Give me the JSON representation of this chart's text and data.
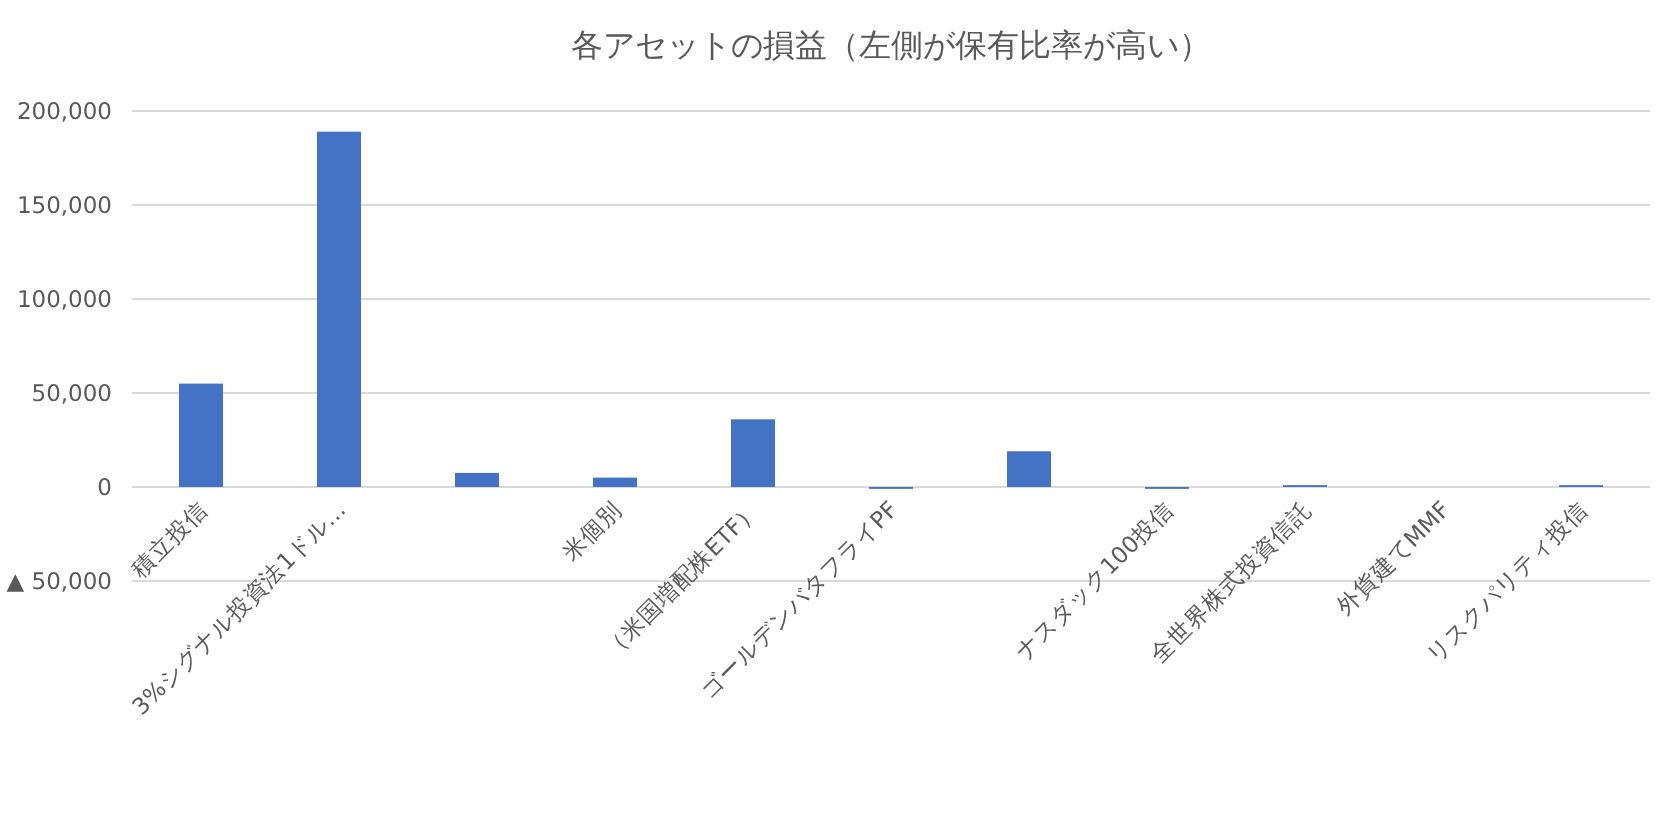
{
  "chart_data": {
    "type": "bar",
    "title": "各アセットの損益（左側が保有比率が高い）",
    "categories": [
      "積立投信",
      "3%シグナル投資法1ドル…",
      null,
      "米個別",
      "（米国増配株ETF）",
      "ゴールデンバタフライPF",
      null,
      "ナスダック100投信",
      "全世界株式投資信託",
      "外貨建てMMF",
      "リスクパリティ投信"
    ],
    "values": [
      55000,
      189000,
      7500,
      5000,
      36000,
      -1000,
      19000,
      -1000,
      1000,
      0,
      1000
    ],
    "color": "#4472c4",
    "ylim": [
      -50000,
      200000
    ],
    "yticks": [
      {
        "value": -50000,
        "label": "▲ 50,000"
      },
      {
        "value": 0,
        "label": "0"
      },
      {
        "value": 50000,
        "label": "50,000"
      },
      {
        "value": 100000,
        "label": "100,000"
      },
      {
        "value": 150000,
        "label": "150,000"
      },
      {
        "value": 200000,
        "label": "200,000"
      }
    ],
    "grid": "y"
  }
}
